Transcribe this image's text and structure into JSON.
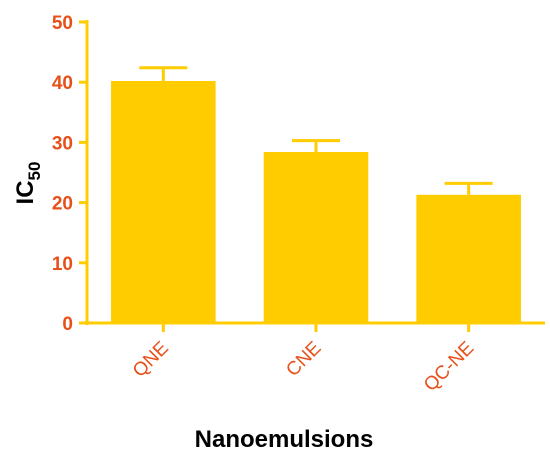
{
  "chart_data": {
    "type": "bar",
    "categories": [
      "QNE",
      "CNE",
      "QC-NE"
    ],
    "values": [
      40.2,
      28.4,
      21.3
    ],
    "error": [
      2.2,
      1.9,
      1.9
    ],
    "xlabel": "Nanoemulsions",
    "ylabel_main": "IC",
    "ylabel_sub": "50",
    "ylim": [
      0,
      50
    ],
    "yticks": [
      0,
      10,
      20,
      30,
      40,
      50
    ],
    "grid": false,
    "legend": "none",
    "colors": {
      "bar": "#FFCC00",
      "error_bar": "#FFCC00",
      "axis": "#FFCC00",
      "tick_label": "#E8501A",
      "axis_title": "#000000"
    }
  }
}
